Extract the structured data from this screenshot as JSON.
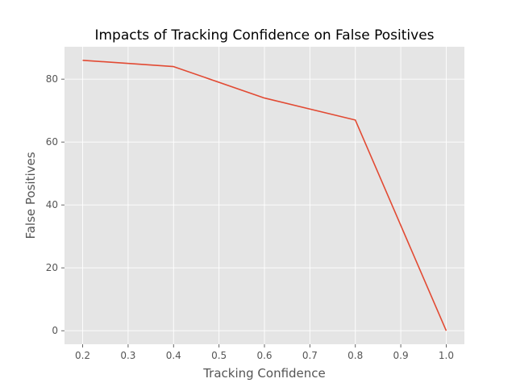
{
  "chart_data": {
    "type": "line",
    "title": "Impacts of Tracking Confidence on False Positives",
    "xlabel": "Tracking Confidence",
    "ylabel": "False Positives",
    "x": [
      0.2,
      0.4,
      0.6,
      0.8,
      1.0
    ],
    "series": [
      {
        "values": [
          86,
          84,
          74,
          67,
          0
        ]
      }
    ],
    "xlim": [
      0.16,
      1.04
    ],
    "ylim": [
      -4.3,
      90.3
    ],
    "xticks": [
      0.2,
      0.3,
      0.4,
      0.5,
      0.6,
      0.7,
      0.8,
      0.9,
      1.0
    ],
    "xtick_labels": [
      "0.2",
      "0.3",
      "0.4",
      "0.5",
      "0.6",
      "0.7",
      "0.8",
      "0.9",
      "1.0"
    ],
    "yticks": [
      0,
      20,
      40,
      60,
      80
    ],
    "ytick_labels": [
      "0",
      "20",
      "40",
      "60",
      "80"
    ],
    "grid": true,
    "style": {
      "background": "#e5e5e5",
      "grid_color": "#ffffff",
      "line_color": "#e24a33",
      "tick_color": "#555555"
    }
  }
}
